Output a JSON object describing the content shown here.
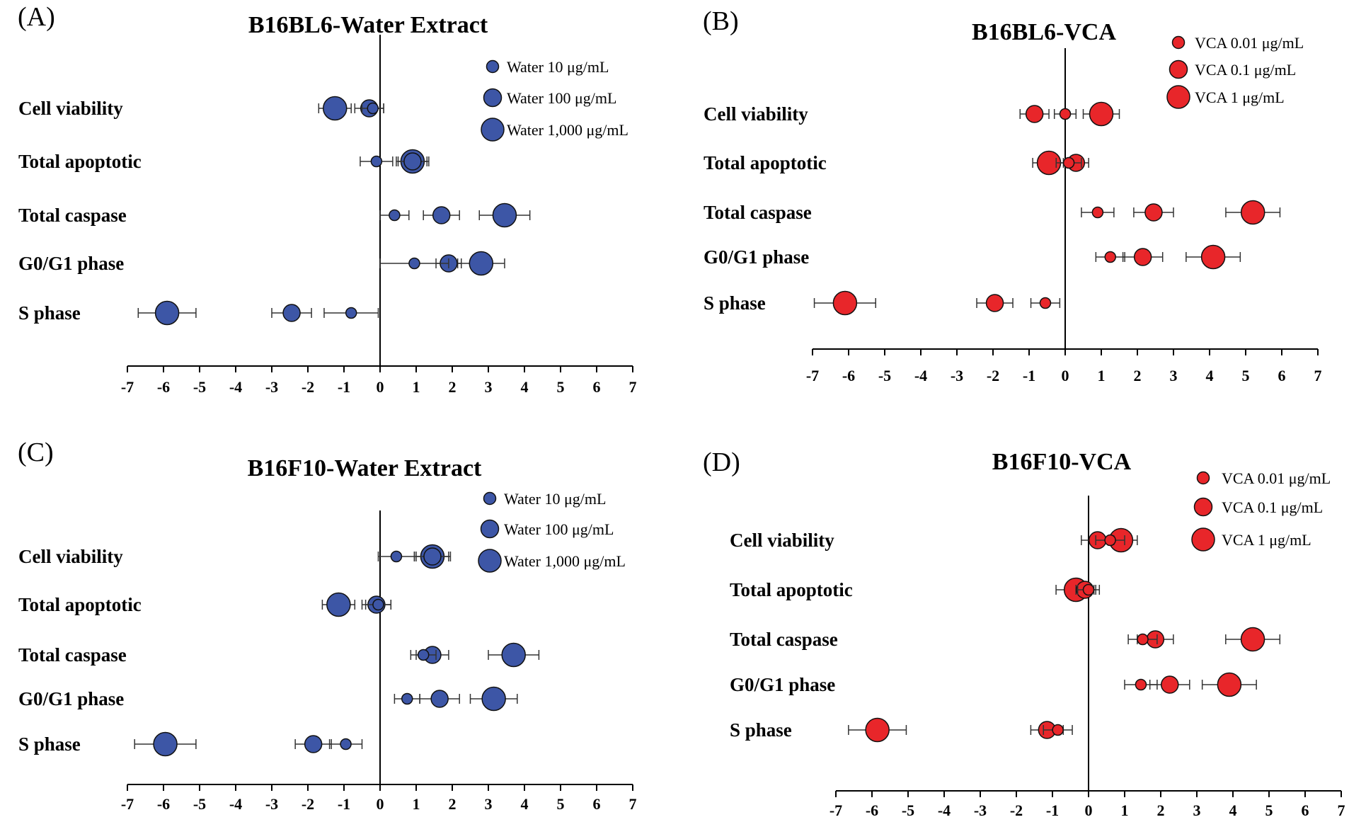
{
  "chart_data": [
    {
      "type": "scatter",
      "panel_label": "(A)",
      "title": "B16BL6-Water Extract",
      "color": "#3d56a6",
      "legend": [
        "Water 10 μg/mL",
        "Water 100 μg/mL",
        "Water 1,000 μg/mL"
      ],
      "legend_position": "top-right",
      "categories": [
        "Cell viability",
        "Total apoptotic",
        "Total caspase",
        "G0/G1 phase",
        "S phase"
      ],
      "xlim": [
        -7,
        7
      ],
      "x_ticks": [
        "-7",
        "-6",
        "-5",
        "-4",
        "-3",
        "-2",
        "-1",
        "0",
        "1",
        "2",
        "3",
        "4",
        "5",
        "6",
        "7"
      ],
      "series": [
        {
          "name": "Water 10 μg/mL",
          "values": [
            -0.2,
            -0.1,
            0.4,
            0.95,
            -0.8
          ],
          "errors": [
            0.3,
            0.45,
            0.4,
            0.95,
            0.75
          ]
        },
        {
          "name": "Water 100 μg/mL",
          "values": [
            -0.3,
            0.9,
            1.7,
            1.9,
            -2.45
          ],
          "errors": [
            0.4,
            0.4,
            0.5,
            0.35,
            0.55
          ]
        },
        {
          "name": "Water 1,000 μg/mL",
          "values": [
            -1.25,
            0.9,
            3.45,
            2.8,
            -5.9
          ],
          "errors": [
            0.45,
            0.45,
            0.7,
            0.65,
            0.8
          ]
        }
      ]
    },
    {
      "type": "scatter",
      "panel_label": "(B)",
      "title": "B16BL6-VCA",
      "color": "#e8262a",
      "legend": [
        "VCA 0.01 μg/mL",
        "VCA 0.1 μg/mL",
        "VCA 1 μg/mL"
      ],
      "legend_position": "top-right",
      "categories": [
        "Cell viability",
        "Total apoptotic",
        "Total caspase",
        "G0/G1 phase",
        "S phase"
      ],
      "xlim": [
        -7,
        7
      ],
      "x_ticks": [
        "-7",
        "-6",
        "-5",
        "-4",
        "-3",
        "-2",
        "-1",
        "0",
        "1",
        "2",
        "3",
        "4",
        "5",
        "6",
        "7"
      ],
      "series": [
        {
          "name": "VCA 0.01 μg/mL",
          "values": [
            0.0,
            0.1,
            0.9,
            1.25,
            -0.55
          ],
          "errors": [
            0.3,
            0.35,
            0.45,
            0.4,
            0.4
          ]
        },
        {
          "name": "VCA 0.1 μg/mL",
          "values": [
            -0.85,
            0.3,
            2.45,
            2.15,
            -1.95
          ],
          "errors": [
            0.4,
            0.35,
            0.55,
            0.55,
            0.5
          ]
        },
        {
          "name": "VCA 1 μg/mL",
          "values": [
            1.0,
            -0.45,
            5.2,
            4.1,
            -6.1
          ],
          "errors": [
            0.5,
            0.45,
            0.75,
            0.75,
            0.85
          ]
        }
      ]
    },
    {
      "type": "scatter",
      "panel_label": "(C)",
      "title": "B16F10-Water Extract",
      "color": "#3d56a6",
      "legend": [
        "Water 10 μg/mL",
        "Water 100 μg/mL",
        "Water 1,000 μg/mL"
      ],
      "legend_position": "top-right",
      "categories": [
        "Cell viability",
        "Total apoptotic",
        "Total caspase",
        "G0/G1 phase",
        "S phase"
      ],
      "xlim": [
        -7,
        7
      ],
      "x_ticks": [
        "-7",
        "-6",
        "-5",
        "-4",
        "-3",
        "-2",
        "-1",
        "0",
        "1",
        "2",
        "3",
        "4",
        "5",
        "6",
        "7"
      ],
      "series": [
        {
          "name": "Water 10 μg/mL",
          "values": [
            0.45,
            -0.05,
            1.2,
            0.75,
            -0.95
          ],
          "errors": [
            0.5,
            0.35,
            0.35,
            0.35,
            0.45
          ]
        },
        {
          "name": "Water 100 μg/mL",
          "values": [
            1.45,
            -0.1,
            1.45,
            1.65,
            -1.85
          ],
          "errors": [
            0.45,
            0.4,
            0.45,
            0.55,
            0.5
          ]
        },
        {
          "name": "Water 1,000 μg/mL",
          "values": [
            1.45,
            -1.15,
            3.7,
            3.15,
            -5.95
          ],
          "errors": [
            0.5,
            0.45,
            0.7,
            0.65,
            0.85
          ]
        }
      ]
    },
    {
      "type": "scatter",
      "panel_label": "(D)",
      "title": "B16F10-VCA",
      "color": "#e8262a",
      "legend": [
        "VCA 0.01 μg/mL",
        "VCA 0.1 μg/mL",
        "VCA 1 μg/mL"
      ],
      "legend_position": "top-right",
      "categories": [
        "Cell viability",
        "Total apoptotic",
        "Total caspase",
        "G0/G1 phase",
        "S phase"
      ],
      "xlim": [
        -7,
        7
      ],
      "x_ticks": [
        "-7",
        "-6",
        "-5",
        "-4",
        "-3",
        "-2",
        "-1",
        "0",
        "1",
        "2",
        "3",
        "4",
        "5",
        "6",
        "7"
      ],
      "series": [
        {
          "name": "VCA 0.01 μg/mL",
          "values": [
            0.6,
            0.0,
            1.5,
            1.45,
            -0.85
          ],
          "errors": [
            0.4,
            0.3,
            0.4,
            0.45,
            0.4
          ]
        },
        {
          "name": "VCA 0.1 μg/mL",
          "values": [
            0.25,
            -0.1,
            1.85,
            2.25,
            -1.15
          ],
          "errors": [
            0.45,
            0.25,
            0.5,
            0.55,
            0.45
          ]
        },
        {
          "name": "VCA 1 μg/mL",
          "values": [
            0.9,
            -0.35,
            4.55,
            3.9,
            -5.85
          ],
          "errors": [
            0.45,
            0.55,
            0.75,
            0.75,
            0.8
          ]
        }
      ]
    }
  ]
}
